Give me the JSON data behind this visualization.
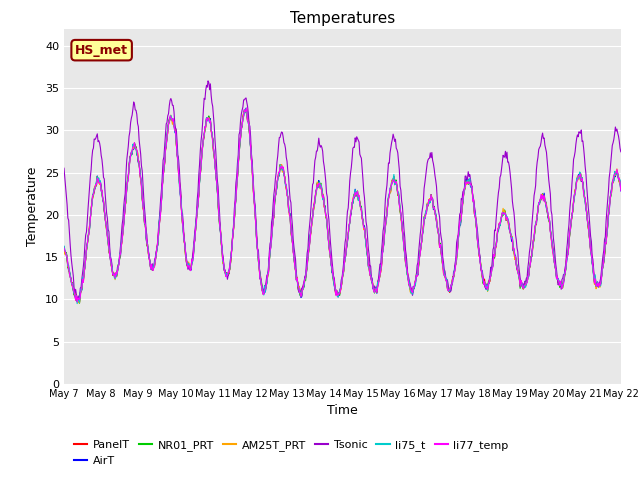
{
  "title": "Temperatures",
  "xlabel": "Time",
  "ylabel": "Temperature",
  "ylim": [
    0,
    42
  ],
  "yticks": [
    0,
    5,
    10,
    15,
    20,
    25,
    30,
    35,
    40
  ],
  "annotation_text": "HS_met",
  "annotation_color": "#8B0000",
  "annotation_bg": "#FFFF99",
  "bg_color": "#E8E8E8",
  "series_colors": {
    "PanelT": "#FF0000",
    "AirT": "#0000FF",
    "NR01_PRT": "#00CC00",
    "AM25T_PRT": "#FFA500",
    "Tsonic": "#9900CC",
    "li75_t": "#00CCCC",
    "li77_temp": "#FF00FF"
  },
  "xtick_labels": [
    "May 7",
    "May 8",
    "May 9",
    "May 10",
    "May 11",
    "May 12",
    "May 13",
    "May 14",
    "May 15",
    "May 16",
    "May 17",
    "May 18",
    "May 19",
    "May 20",
    "May 21",
    "May 22"
  ]
}
